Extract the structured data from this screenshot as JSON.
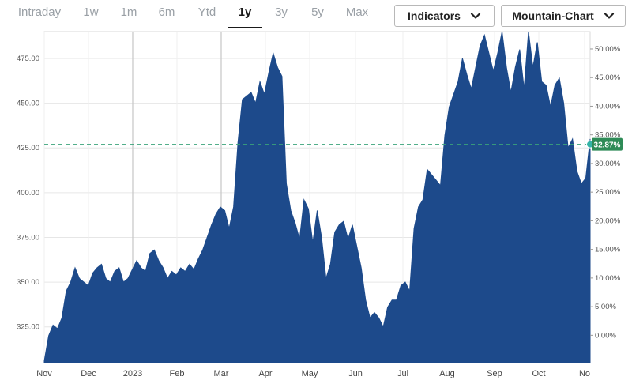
{
  "tabs": {
    "items": [
      "Intraday",
      "1w",
      "1m",
      "6m",
      "Ytd",
      "1y",
      "3y",
      "5y",
      "Max"
    ],
    "active": "1y"
  },
  "toolbar": {
    "indicators_label": "Indicators",
    "chart_type_label": "Mountain-Chart"
  },
  "colors": {
    "area": "#1d4a8b",
    "reference_line": "#3aa37a",
    "badge": "#2e8b57"
  },
  "icons": [
    "chevron-down-icon",
    "chevron-down-icon"
  ],
  "chart_data": {
    "type": "area",
    "x_labels": [
      "Nov",
      "Dec",
      "2023",
      "Feb",
      "Mar",
      "Apr",
      "May",
      "Jun",
      "Jul",
      "Aug",
      "Sep",
      "Oct",
      "No"
    ],
    "y_ticks_left": [
      325,
      350,
      375,
      400,
      425,
      450,
      475
    ],
    "y_tick_labels_left": [
      "325.00",
      "350.00",
      "375.00",
      "400.00",
      "425.00",
      "450.00",
      "475.00"
    ],
    "y_tick_labels_right": [
      "0.00%",
      "5.00%",
      "10.00%",
      "15.00%",
      "20.00%",
      "25.00%",
      "30.00%",
      "35.00%",
      "40.00%",
      "45.00%",
      "50.00%"
    ],
    "ylim": [
      305,
      490
    ],
    "reference_value": 427,
    "current_change_label": "32.87%",
    "vertical_markers": [
      "2023",
      "Mar"
    ],
    "series": [
      {
        "values": [
          306,
          320,
          326,
          324,
          330,
          345,
          350,
          358,
          352,
          350,
          348,
          355,
          358,
          360,
          352,
          350,
          356,
          358,
          350,
          352,
          357,
          362,
          358,
          356,
          366,
          368,
          362,
          358,
          352,
          356,
          354,
          358,
          356,
          360,
          357,
          363,
          368,
          375,
          382,
          388,
          392,
          390,
          380,
          392,
          428,
          452,
          454,
          456,
          450,
          462,
          455,
          467,
          478,
          470,
          465,
          405,
          390,
          383,
          374,
          396,
          391,
          372,
          390,
          375,
          352,
          360,
          378,
          382,
          384,
          374,
          382,
          370,
          358,
          340,
          330,
          333,
          330,
          325,
          336,
          340,
          340,
          348,
          350,
          345,
          380,
          392,
          396,
          413,
          410,
          407,
          404,
          432,
          448,
          455,
          462,
          475,
          466,
          458,
          470,
          482,
          488,
          478,
          468,
          478,
          490,
          470,
          456,
          470,
          480,
          458,
          490,
          470,
          484,
          462,
          460,
          448,
          460,
          464,
          450,
          425,
          430,
          412,
          405,
          408,
          430
        ]
      }
    ]
  }
}
